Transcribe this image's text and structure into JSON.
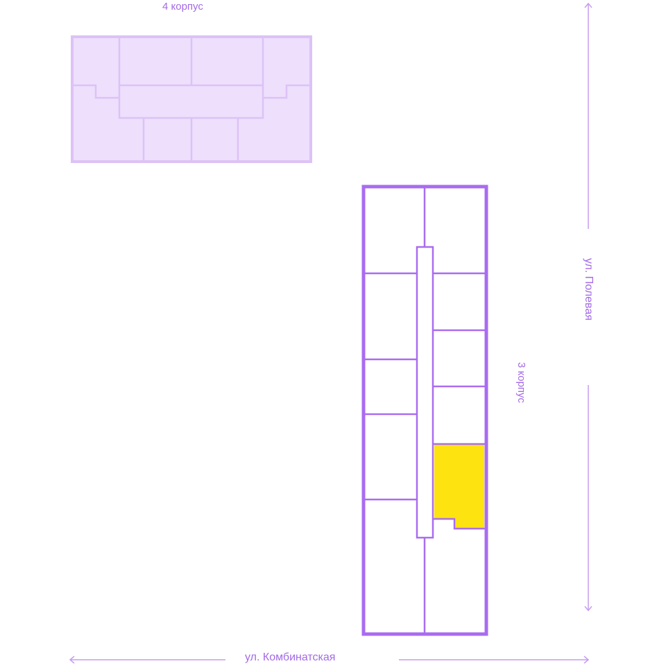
{
  "buildings": {
    "building_4": {
      "label": "4 корпус"
    },
    "building_3": {
      "label": "3 корпус"
    }
  },
  "streets": {
    "right": "ул. Полевая",
    "bottom": "ул. Комбинатская"
  },
  "colors": {
    "accent": "#a96cf0",
    "building_4_fill": "#eedffd",
    "building_4_stroke": "#dcc2f5",
    "highlighted_unit": "#fde30f",
    "arrow_line": "#c79cf0"
  },
  "icons": [
    "arrow-up-icon",
    "arrow-down-icon",
    "arrow-left-icon",
    "arrow-right-icon"
  ]
}
